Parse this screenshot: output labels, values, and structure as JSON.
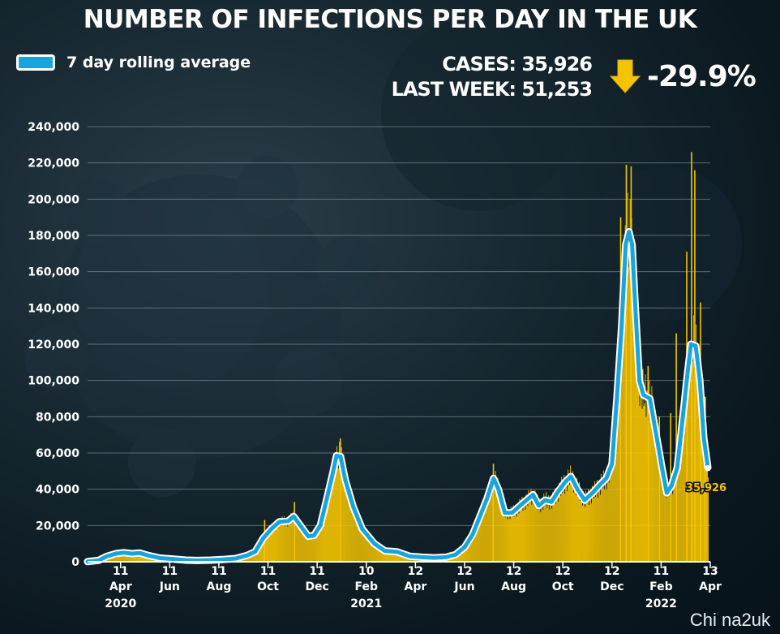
{
  "header": {
    "title": "NUMBER OF INFECTIONS PER DAY IN THE UK",
    "legend_label": "7 day rolling average",
    "cases_label": "CASES:",
    "cases_value": "35,926",
    "last_week_label": "LAST WEEK:",
    "last_week_value": "51,253",
    "change_pct": "-29.9%",
    "change_icon": "down-arrow-icon"
  },
  "credit": "Chi na2uk",
  "colors": {
    "bars": "#f5c400",
    "line": "#1aa4dc",
    "line_outline": "#ffffff",
    "gridline": "#9aa4aa",
    "annotation": "#f5c400"
  },
  "chart_data": {
    "type": "bar",
    "ylim": [
      0,
      240000
    ],
    "yticks": [
      0,
      20000,
      40000,
      60000,
      80000,
      100000,
      120000,
      140000,
      160000,
      180000,
      200000,
      220000,
      240000
    ],
    "ytick_labels": [
      "0",
      "20,000",
      "40,000",
      "60,000",
      "80,000",
      "100,000",
      "120,000",
      "140,000",
      "160,000",
      "180,000",
      "200,000",
      "220,000",
      "240,000"
    ],
    "x_start": "2020-03-01",
    "x_end": "2022-04-13",
    "xticks": [
      {
        "date": "2020-04-11",
        "day": "11",
        "month": "Apr"
      },
      {
        "date": "2020-06-11",
        "day": "11",
        "month": "Jun"
      },
      {
        "date": "2020-08-11",
        "day": "11",
        "month": "Aug"
      },
      {
        "date": "2020-10-11",
        "day": "11",
        "month": "Oct"
      },
      {
        "date": "2020-12-11",
        "day": "11",
        "month": "Dec"
      },
      {
        "date": "2021-02-10",
        "day": "10",
        "month": "Feb"
      },
      {
        "date": "2021-04-12",
        "day": "12",
        "month": "Apr"
      },
      {
        "date": "2021-06-12",
        "day": "12",
        "month": "Jun"
      },
      {
        "date": "2021-08-12",
        "day": "12",
        "month": "Aug"
      },
      {
        "date": "2021-10-12",
        "day": "12",
        "month": "Oct"
      },
      {
        "date": "2021-12-12",
        "day": "12",
        "month": "Dec"
      },
      {
        "date": "2022-02-11",
        "day": "11",
        "month": "Feb"
      },
      {
        "date": "2022-04-13",
        "day": "13",
        "month": "Apr"
      }
    ],
    "year_labels": [
      {
        "date": "2020-04-11",
        "label": "2020"
      },
      {
        "date": "2021-02-10",
        "label": "2021"
      },
      {
        "date": "2022-02-11",
        "label": "2022"
      }
    ],
    "series": [
      {
        "name": "7 day rolling average",
        "type": "line",
        "points": [
          [
            "2020-03-01",
            100
          ],
          [
            "2020-03-15",
            800
          ],
          [
            "2020-03-25",
            3000
          ],
          [
            "2020-04-05",
            4500
          ],
          [
            "2020-04-15",
            5000
          ],
          [
            "2020-04-25",
            4500
          ],
          [
            "2020-05-05",
            4800
          ],
          [
            "2020-05-15",
            3500
          ],
          [
            "2020-05-30",
            2000
          ],
          [
            "2020-06-15",
            1500
          ],
          [
            "2020-07-01",
            900
          ],
          [
            "2020-07-15",
            700
          ],
          [
            "2020-08-01",
            900
          ],
          [
            "2020-08-15",
            1200
          ],
          [
            "2020-09-01",
            1800
          ],
          [
            "2020-09-15",
            3500
          ],
          [
            "2020-09-25",
            5500
          ],
          [
            "2020-10-05",
            13000
          ],
          [
            "2020-10-15",
            18000
          ],
          [
            "2020-10-25",
            22000
          ],
          [
            "2020-11-05",
            22500
          ],
          [
            "2020-11-12",
            25000
          ],
          [
            "2020-11-20",
            20000
          ],
          [
            "2020-11-30",
            14000
          ],
          [
            "2020-12-07",
            14500
          ],
          [
            "2020-12-15",
            20000
          ],
          [
            "2020-12-22",
            33000
          ],
          [
            "2020-12-30",
            48000
          ],
          [
            "2021-01-04",
            58500
          ],
          [
            "2021-01-09",
            58000
          ],
          [
            "2021-01-15",
            45000
          ],
          [
            "2021-01-25",
            30000
          ],
          [
            "2021-02-05",
            18000
          ],
          [
            "2021-02-20",
            10000
          ],
          [
            "2021-03-05",
            6000
          ],
          [
            "2021-03-20",
            5500
          ],
          [
            "2021-04-05",
            3000
          ],
          [
            "2021-04-20",
            2500
          ],
          [
            "2021-05-05",
            2200
          ],
          [
            "2021-05-20",
            2500
          ],
          [
            "2021-06-01",
            4000
          ],
          [
            "2021-06-12",
            8000
          ],
          [
            "2021-06-22",
            15000
          ],
          [
            "2021-07-02",
            26000
          ],
          [
            "2021-07-10",
            35000
          ],
          [
            "2021-07-18",
            46000
          ],
          [
            "2021-07-24",
            40000
          ],
          [
            "2021-08-01",
            27000
          ],
          [
            "2021-08-10",
            27000
          ],
          [
            "2021-08-20",
            31000
          ],
          [
            "2021-08-28",
            34000
          ],
          [
            "2021-09-05",
            37000
          ],
          [
            "2021-09-12",
            31000
          ],
          [
            "2021-09-20",
            34000
          ],
          [
            "2021-09-28",
            33000
          ],
          [
            "2021-10-05",
            38000
          ],
          [
            "2021-10-15",
            44000
          ],
          [
            "2021-10-22",
            47000
          ],
          [
            "2021-10-30",
            40000
          ],
          [
            "2021-11-08",
            34000
          ],
          [
            "2021-11-18",
            38000
          ],
          [
            "2021-11-28",
            43000
          ],
          [
            "2021-12-05",
            46000
          ],
          [
            "2021-12-12",
            54000
          ],
          [
            "2021-12-18",
            90000
          ],
          [
            "2021-12-24",
            130000
          ],
          [
            "2021-12-29",
            175000
          ],
          [
            "2022-01-02",
            182000
          ],
          [
            "2022-01-06",
            175000
          ],
          [
            "2022-01-10",
            140000
          ],
          [
            "2022-01-15",
            100000
          ],
          [
            "2022-01-20",
            92000
          ],
          [
            "2022-01-28",
            90000
          ],
          [
            "2022-02-05",
            70000
          ],
          [
            "2022-02-12",
            52000
          ],
          [
            "2022-02-18",
            38000
          ],
          [
            "2022-02-24",
            42000
          ],
          [
            "2022-03-03",
            52000
          ],
          [
            "2022-03-10",
            80000
          ],
          [
            "2022-03-16",
            105000
          ],
          [
            "2022-03-20",
            120000
          ],
          [
            "2022-03-26",
            119000
          ],
          [
            "2022-03-31",
            100000
          ],
          [
            "2022-04-05",
            68000
          ],
          [
            "2022-04-10",
            52000
          ]
        ]
      }
    ],
    "daily_spikes": [
      [
        "2020-10-06",
        23000
      ],
      [
        "2020-11-12",
        33000
      ],
      [
        "2021-01-08",
        68000
      ],
      [
        "2021-07-17",
        54000
      ],
      [
        "2021-12-22",
        190000
      ],
      [
        "2021-12-29",
        219000
      ],
      [
        "2022-01-04",
        218000
      ],
      [
        "2022-01-25",
        108000
      ],
      [
        "2022-02-08",
        80000
      ],
      [
        "2022-02-22",
        82000
      ],
      [
        "2022-03-01",
        126000
      ],
      [
        "2022-03-14",
        171000
      ],
      [
        "2022-03-20",
        226000
      ],
      [
        "2022-03-24",
        216000
      ],
      [
        "2022-03-31",
        143000
      ],
      [
        "2022-04-06",
        91000
      ]
    ],
    "annotations": [
      {
        "date": "2022-04-10",
        "value": 35926,
        "label": "35,926"
      }
    ]
  }
}
